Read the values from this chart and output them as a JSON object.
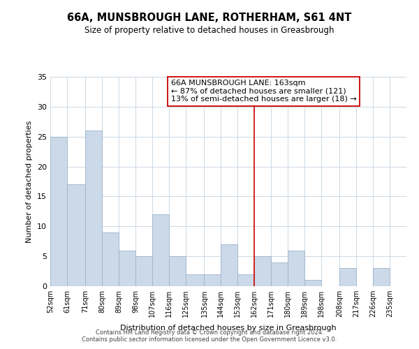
{
  "title": "66A, MUNSBROUGH LANE, ROTHERHAM, S61 4NT",
  "subtitle": "Size of property relative to detached houses in Greasbrough",
  "xlabel": "Distribution of detached houses by size in Greasbrough",
  "ylabel": "Number of detached properties",
  "bin_labels": [
    "52sqm",
    "61sqm",
    "71sqm",
    "80sqm",
    "89sqm",
    "98sqm",
    "107sqm",
    "116sqm",
    "125sqm",
    "135sqm",
    "144sqm",
    "153sqm",
    "162sqm",
    "171sqm",
    "180sqm",
    "189sqm",
    "198sqm",
    "208sqm",
    "217sqm",
    "226sqm",
    "235sqm"
  ],
  "bin_edges": [
    52,
    61,
    71,
    80,
    89,
    98,
    107,
    116,
    125,
    135,
    144,
    153,
    162,
    171,
    180,
    189,
    198,
    208,
    217,
    226,
    235
  ],
  "counts": [
    25,
    17,
    26,
    9,
    6,
    5,
    12,
    5,
    2,
    2,
    7,
    2,
    5,
    4,
    6,
    1,
    0,
    3,
    0,
    3,
    0
  ],
  "bar_color": "#ccd9e8",
  "bar_edge_color": "#9ab5cc",
  "property_line_x": 162,
  "property_line_color": "#cc0000",
  "annotation_text": "66A MUNSBROUGH LANE: 163sqm\n← 87% of detached houses are smaller (121)\n13% of semi-detached houses are larger (18) →",
  "annotation_box_color": "#ffffff",
  "annotation_box_edge": "#cc0000",
  "ylim": [
    0,
    35
  ],
  "yticks": [
    0,
    5,
    10,
    15,
    20,
    25,
    30,
    35
  ],
  "footer_line1": "Contains HM Land Registry data © Crown copyright and database right 2024.",
  "footer_line2": "Contains public sector information licensed under the Open Government Licence v3.0.",
  "background_color": "#ffffff",
  "grid_color": "#ccd8e4"
}
